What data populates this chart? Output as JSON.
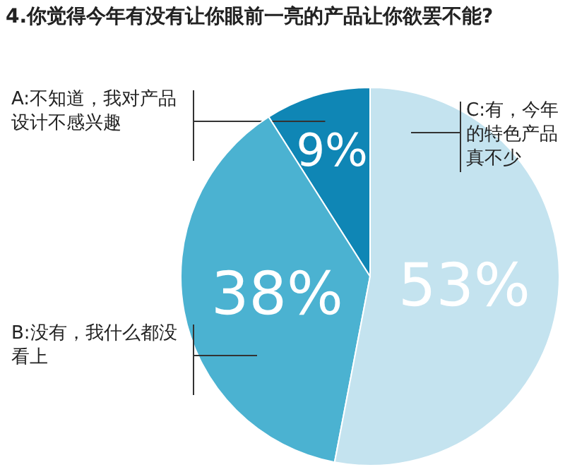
{
  "chart_data": {
    "type": "pie",
    "title": "4.你觉得今年有没有让你眼前一亮的产品让你欲罢不能?",
    "categories": [
      "A:不知道，我对产品设计不感兴趣",
      "B:没有，我什么都没看上",
      "C:有，今年的特色产品真不少"
    ],
    "values": [
      9,
      38,
      53
    ],
    "colors": [
      "#0f86b5",
      "#4bb2d1",
      "#c4e3ef"
    ],
    "value_labels": [
      "9%",
      "38%",
      "53%"
    ]
  }
}
